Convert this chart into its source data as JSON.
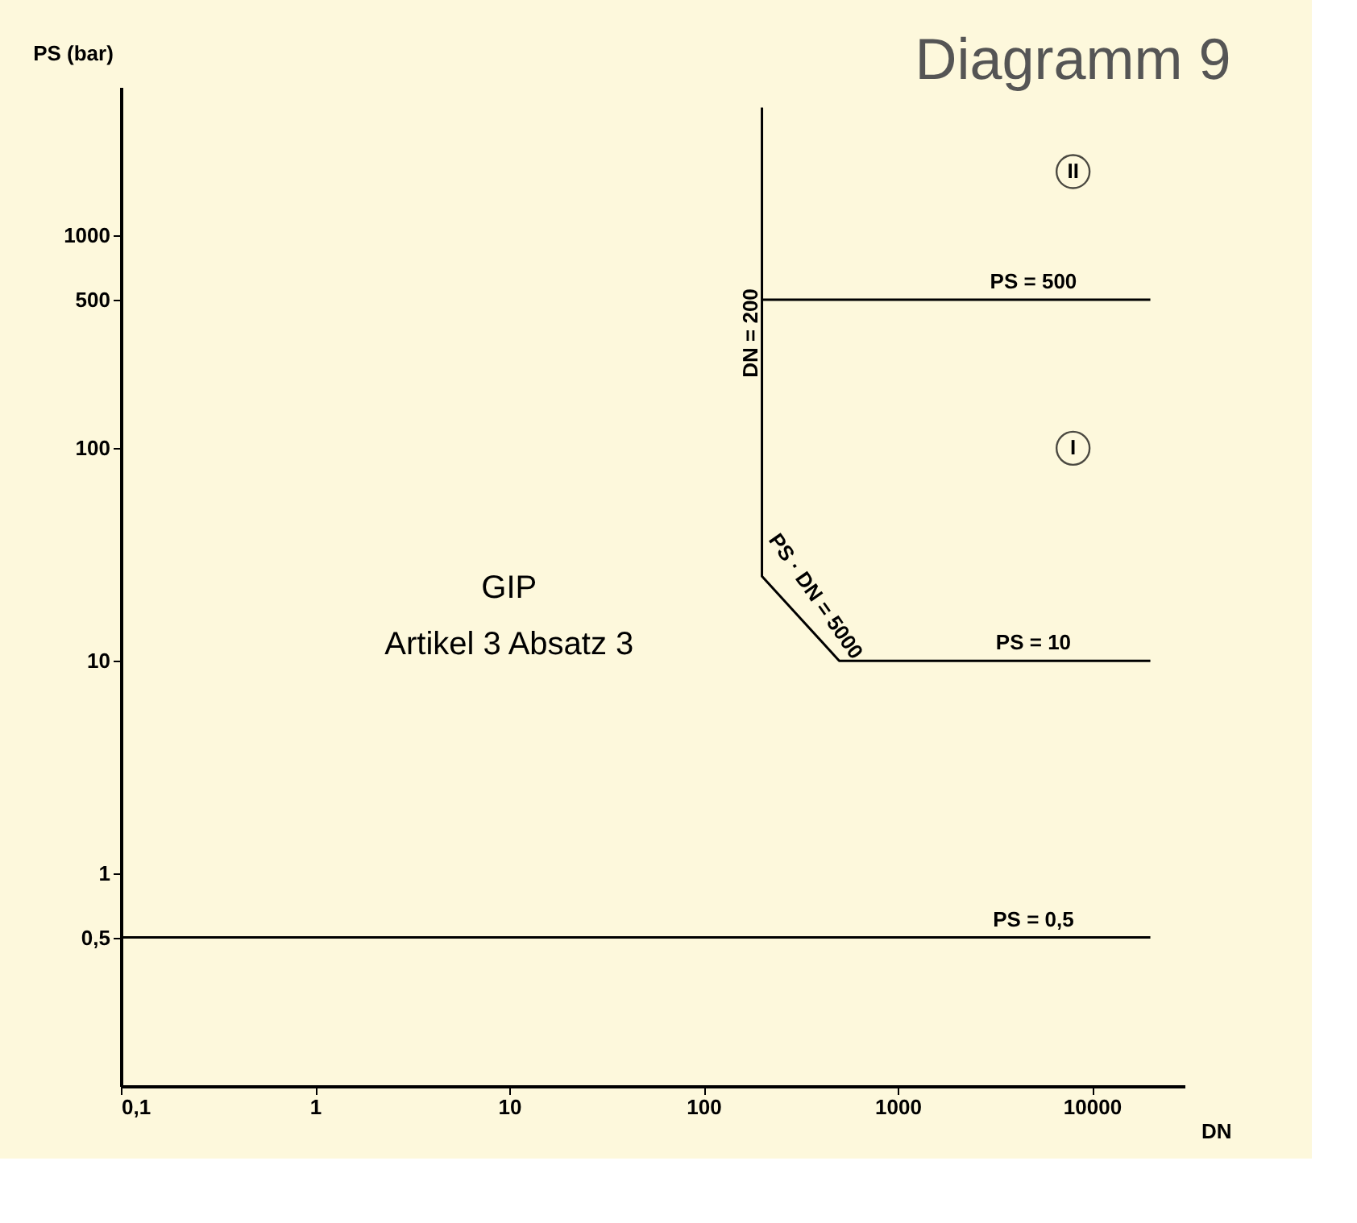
{
  "chart_data": {
    "type": "line",
    "title": "Diagramm 9",
    "xlabel": "DN",
    "ylabel": "PS (bar)",
    "log": "xy",
    "grid": false,
    "legend": false,
    "marker": "none",
    "line_style": "solid",
    "xlim": [
      0.1,
      30000
    ],
    "xticks": [
      {
        "value": 0.1,
        "label": "0,1"
      },
      1,
      10,
      100,
      1000,
      10000
    ],
    "ylim": [
      0.1,
      5000
    ],
    "yticks": [
      {
        "value": 0.5,
        "label": "0,5"
      },
      1,
      10,
      100,
      500,
      1000
    ],
    "series": [
      {
        "color": "#000000",
        "x": [
          0.1,
          20000
        ],
        "values": [
          0.5,
          0.5
        ]
      },
      {
        "color": "#000000",
        "x": [
          200,
          200,
          500,
          20000
        ],
        "values": [
          4000,
          25,
          10,
          10
        ]
      },
      {
        "color": "#000000",
        "x": [
          200,
          20000
        ],
        "values": [
          500,
          500
        ]
      }
    ],
    "annotations": [
      {
        "text": "PS = 500",
        "x": 5000,
        "y": 500
      },
      {
        "text": "PS = 10",
        "x": 5000,
        "y": 10
      },
      {
        "text": "PS = 0,5",
        "x": 5000,
        "y": 0.5
      },
      {
        "text": "DN = 200",
        "x": 200,
        "y": 400
      },
      "PS · DN = 5000",
      "GIP",
      "Artikel 3 Absatz 3",
      {
        "text": "I",
        "x": 8000,
        "y": 100
      },
      {
        "text": "II",
        "x": 8000,
        "y": 2000
      }
    ]
  }
}
